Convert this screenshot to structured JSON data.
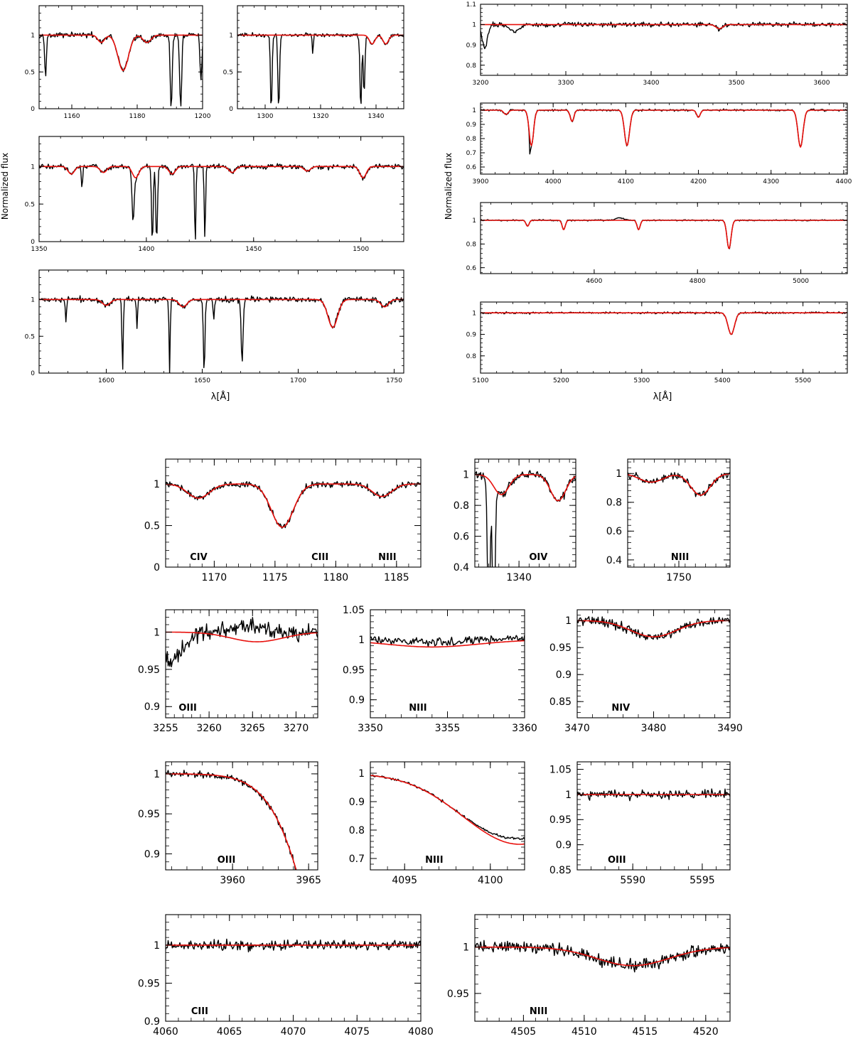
{
  "figure": {
    "ylabel_left": "Normalized flux",
    "ylabel_right": "Normalized flux",
    "xlabel_left": "λ[Å]",
    "xlabel_right": "λ[Å]"
  },
  "colors": {
    "observed": "#000000",
    "model": "#e8110d"
  },
  "chart_data": [
    {
      "id": "p1",
      "type": "line",
      "xlim": [
        1150,
        1200
      ],
      "ylim": [
        0,
        1.4
      ],
      "xticks": [
        1160,
        1180,
        1200
      ],
      "yticks": [
        0,
        0.5,
        1
      ],
      "ytick_labels": [
        "0",
        "0.5",
        "1"
      ],
      "noise": 0.035,
      "ions": [],
      "lines": [
        {
          "c": 1175.7,
          "d": 0.48,
          "w": 1.6,
          "m": true
        },
        {
          "c": 1169,
          "d": 0.1,
          "w": 1,
          "m": true
        },
        {
          "c": 1183,
          "d": 0.1,
          "w": 1.2,
          "m": true
        },
        {
          "c": 1152,
          "d": 0.55,
          "w": 0.25,
          "m": false
        },
        {
          "c": 1190.4,
          "d": 1.0,
          "w": 0.3,
          "m": false
        },
        {
          "c": 1193.3,
          "d": 1.0,
          "w": 0.3,
          "m": false
        },
        {
          "c": 1199.5,
          "d": 0.6,
          "w": 0.3,
          "m": false
        }
      ]
    },
    {
      "id": "p2",
      "type": "line",
      "xlim": [
        1290,
        1350
      ],
      "ylim": [
        0,
        1.4
      ],
      "xticks": [
        1300,
        1320,
        1340
      ],
      "yticks": [
        0,
        0.5,
        1
      ],
      "ytick_labels": [
        "0",
        "0.5",
        "1"
      ],
      "noise": 0.025,
      "ions": [],
      "lines": [
        {
          "c": 1302.2,
          "d": 1.0,
          "w": 0.3,
          "m": false
        },
        {
          "c": 1304.9,
          "d": 1.0,
          "w": 0.3,
          "m": false
        },
        {
          "c": 1317.2,
          "d": 0.25,
          "w": 0.2,
          "m": false
        },
        {
          "c": 1334.5,
          "d": 1.0,
          "w": 0.3,
          "m": false
        },
        {
          "c": 1335.7,
          "d": 0.8,
          "w": 0.3,
          "m": false
        },
        {
          "c": 1343.5,
          "d": 0.12,
          "w": 1,
          "m": true
        },
        {
          "c": 1338.6,
          "d": 0.12,
          "w": 1,
          "m": true
        }
      ]
    },
    {
      "id": "p3",
      "type": "line",
      "xlim": [
        1350,
        1520
      ],
      "ylim": [
        0,
        1.4
      ],
      "xticks": [
        1350,
        1400,
        1450,
        1500
      ],
      "yticks": [
        0,
        0.5,
        1
      ],
      "ytick_labels": [
        "0",
        "0.5",
        "1"
      ],
      "noise": 0.03,
      "ions": [],
      "lines": [
        {
          "c": 1370,
          "d": 0.3,
          "w": 0.3,
          "m": false
        },
        {
          "c": 1393.8,
          "d": 0.62,
          "w": 0.5,
          "m": false
        },
        {
          "c": 1402.8,
          "d": 1.0,
          "w": 0.4,
          "m": false
        },
        {
          "c": 1404.8,
          "d": 1.0,
          "w": 0.4,
          "m": false
        },
        {
          "c": 1422.8,
          "d": 1.0,
          "w": 0.3,
          "m": false
        },
        {
          "c": 1427.3,
          "d": 1.0,
          "w": 0.3,
          "m": false
        },
        {
          "c": 1365,
          "d": 0.1,
          "w": 1.5,
          "m": true
        },
        {
          "c": 1380,
          "d": 0.08,
          "w": 1.5,
          "m": true
        },
        {
          "c": 1395,
          "d": 0.15,
          "w": 1.5,
          "m": true
        },
        {
          "c": 1412,
          "d": 0.1,
          "w": 1.5,
          "m": true
        },
        {
          "c": 1440,
          "d": 0.08,
          "w": 1.5,
          "m": true
        },
        {
          "c": 1475,
          "d": 0.06,
          "w": 1.5,
          "m": true
        },
        {
          "c": 1501,
          "d": 0.15,
          "w": 1.5,
          "m": true
        }
      ]
    },
    {
      "id": "p4",
      "type": "line",
      "xlim": [
        1565,
        1755
      ],
      "ylim": [
        0,
        1.4
      ],
      "xticks": [
        1600,
        1650,
        1700,
        1750
      ],
      "yticks": [
        0,
        0.5,
        1
      ],
      "ytick_labels": [
        "0",
        "0.5",
        "1"
      ],
      "noise": 0.035,
      "ions": [],
      "lines": [
        {
          "c": 1579,
          "d": 0.3,
          "w": 0.3,
          "m": false
        },
        {
          "c": 1608.5,
          "d": 0.95,
          "w": 0.35,
          "m": false
        },
        {
          "c": 1616,
          "d": 0.4,
          "w": 0.3,
          "m": false
        },
        {
          "c": 1633,
          "d": 1.0,
          "w": 0.3,
          "m": false
        },
        {
          "c": 1651,
          "d": 1.0,
          "w": 0.4,
          "m": false
        },
        {
          "c": 1656,
          "d": 0.3,
          "w": 0.3,
          "m": false
        },
        {
          "c": 1670.8,
          "d": 0.85,
          "w": 0.5,
          "m": false
        },
        {
          "c": 1718,
          "d": 0.38,
          "w": 2.5,
          "m": true
        },
        {
          "c": 1600,
          "d": 0.08,
          "w": 2,
          "m": true
        },
        {
          "c": 1640,
          "d": 0.1,
          "w": 2,
          "m": true
        },
        {
          "c": 1745,
          "d": 0.1,
          "w": 2,
          "m": true
        }
      ]
    },
    {
      "id": "p5",
      "type": "line",
      "xlim": [
        3200,
        3630
      ],
      "ylim": [
        0.75,
        1.1
      ],
      "xticks": [
        3200,
        3300,
        3400,
        3500,
        3600
      ],
      "yticks": [
        0.8,
        0.9,
        1,
        1.1
      ],
      "ytick_labels": [
        "0.8",
        "0.9",
        "1",
        "1.1"
      ],
      "noise": 0.01,
      "ions": [],
      "lines": [
        {
          "c": 3205,
          "d": 0.12,
          "w": 3,
          "m": false
        },
        {
          "c": 3240,
          "d": 0.03,
          "w": 6,
          "m": false
        },
        {
          "c": 3480,
          "d": 0.02,
          "w": 4,
          "m": true
        }
      ]
    },
    {
      "id": "p6",
      "type": "line",
      "xlim": [
        3900,
        4405
      ],
      "ylim": [
        0.55,
        1.05
      ],
      "xticks": [
        3900,
        4000,
        4100,
        4200,
        4300,
        4400
      ],
      "yticks": [
        0.6,
        0.7,
        0.8,
        0.9,
        1
      ],
      "ytick_labels": [
        "0.6",
        "0.7",
        "0.8",
        "0.9",
        "1"
      ],
      "noise": 0.006,
      "ions": [],
      "lines": [
        {
          "c": 3970,
          "d": 0.25,
          "w": 3,
          "m": true
        },
        {
          "c": 3968,
          "d": 0.12,
          "w": 0.7,
          "m": false
        },
        {
          "c": 4026,
          "d": 0.08,
          "w": 2.5,
          "m": true
        },
        {
          "c": 4101.7,
          "d": 0.25,
          "w": 3.5,
          "m": true
        },
        {
          "c": 4200,
          "d": 0.05,
          "w": 2.5,
          "m": true
        },
        {
          "c": 4340.5,
          "d": 0.26,
          "w": 3.5,
          "m": true
        },
        {
          "c": 3935,
          "d": 0.03,
          "w": 3,
          "m": true
        }
      ]
    },
    {
      "id": "p7",
      "type": "line",
      "xlim": [
        4380,
        5090
      ],
      "ylim": [
        0.55,
        1.15
      ],
      "xticks": [
        4600,
        4800,
        5000
      ],
      "yticks": [
        0.6,
        0.8,
        1
      ],
      "ytick_labels": [
        "0.6",
        "0.8",
        "1"
      ],
      "noise": 0.005,
      "ions": [],
      "lines": [
        {
          "c": 4471,
          "d": 0.05,
          "w": 3,
          "m": true
        },
        {
          "c": 4541,
          "d": 0.08,
          "w": 3,
          "m": true
        },
        {
          "c": 4686,
          "d": 0.08,
          "w": 3,
          "m": true
        },
        {
          "c": 4861,
          "d": 0.24,
          "w": 4,
          "m": true
        },
        {
          "c": 4650,
          "d": -0.02,
          "w": 8,
          "m": false
        }
      ]
    },
    {
      "id": "p8",
      "type": "line",
      "xlim": [
        5100,
        5555
      ],
      "ylim": [
        0.72,
        1.05
      ],
      "xticks": [
        5100,
        5200,
        5300,
        5400,
        5500
      ],
      "yticks": [
        0.8,
        0.9,
        1
      ],
      "ytick_labels": [
        "0.8",
        "0.9",
        "1"
      ],
      "noise": 0.004,
      "ions": [],
      "lines": [
        {
          "c": 5411,
          "d": 0.1,
          "w": 4,
          "m": true
        }
      ]
    },
    {
      "id": "z1",
      "type": "line",
      "xlim": [
        1166,
        1187
      ],
      "ylim": [
        0,
        1.3
      ],
      "xticks": [
        1170,
        1175,
        1180,
        1185
      ],
      "yticks": [
        0,
        0.5,
        1
      ],
      "ytick_labels": [
        "0",
        "0.5",
        "1"
      ],
      "noise": 0.035,
      "ions": [
        {
          "t": "CIV",
          "x": 1168
        },
        {
          "t": "CIII",
          "x": 1178
        },
        {
          "t": "NIII",
          "x": 1183.5
        }
      ],
      "lines": [
        {
          "c": 1175.6,
          "d": 0.52,
          "w": 0.9,
          "m": true
        },
        {
          "c": 1168.7,
          "d": 0.17,
          "w": 0.9,
          "m": true
        },
        {
          "c": 1183.8,
          "d": 0.15,
          "w": 0.8,
          "m": true
        }
      ]
    },
    {
      "id": "z2",
      "type": "line",
      "xlim": [
        1336.5,
        1344.5
      ],
      "ylim": [
        0.4,
        1.1
      ],
      "xticks": [
        1340
      ],
      "yticks": [
        0.4,
        0.6,
        0.8,
        1
      ],
      "ytick_labels": [
        "0.4",
        "0.6",
        "0.8",
        "1"
      ],
      "noise": 0.025,
      "ions": [
        {
          "t": "OIV",
          "x": 1340.8
        }
      ],
      "lines": [
        {
          "c": 1338.6,
          "d": 0.13,
          "w": 0.6,
          "m": true
        },
        {
          "c": 1343.1,
          "d": 0.17,
          "w": 0.6,
          "m": true
        },
        {
          "c": 1337.6,
          "d": 1.0,
          "w": 0.1,
          "m": false
        },
        {
          "c": 1338.0,
          "d": 1.0,
          "w": 0.1,
          "m": false
        }
      ]
    },
    {
      "id": "z3",
      "type": "line",
      "xlim": [
        1747.4,
        1752.6
      ],
      "ylim": [
        0.35,
        1.1
      ],
      "xticks": [
        1750
      ],
      "yticks": [
        0.4,
        0.6,
        0.8,
        1
      ],
      "ytick_labels": [
        "0.4",
        "0.6",
        "0.8",
        "1"
      ],
      "noise": 0.025,
      "ions": [
        {
          "t": "NIII",
          "x": 1749.6
        }
      ],
      "lines": [
        {
          "c": 1751.1,
          "d": 0.15,
          "w": 0.5,
          "m": true
        },
        {
          "c": 1748.6,
          "d": 0.06,
          "w": 0.6,
          "m": true
        }
      ]
    },
    {
      "id": "z4",
      "type": "line",
      "xlim": [
        3255,
        3272.5
      ],
      "ylim": [
        0.885,
        1.03
      ],
      "xticks": [
        3255,
        3260,
        3265,
        3270
      ],
      "yticks": [
        0.9,
        0.95,
        1
      ],
      "ytick_labels": [
        "0.9",
        "0.95",
        "1"
      ],
      "noise": 0.01,
      "ions": [
        {
          "t": "OIII",
          "x": 3256.5
        }
      ],
      "lines": [
        {
          "c": 3265.5,
          "d": 0.013,
          "w": 3,
          "m": true
        },
        {
          "c": 3255.5,
          "d": 0.04,
          "w": 1.5,
          "m": false
        },
        {
          "c": 3265,
          "d": -0.02,
          "w": 2.5,
          "m": false
        }
      ]
    },
    {
      "id": "z5",
      "type": "line",
      "xlim": [
        3350,
        3360
      ],
      "ylim": [
        0.87,
        1.05
      ],
      "xticks": [
        3350,
        3355,
        3360
      ],
      "yticks": [
        0.9,
        0.95,
        1,
        1.05
      ],
      "ytick_labels": [
        "0.9",
        "0.95",
        "1",
        "1.05"
      ],
      "noise": 0.006,
      "ions": [
        {
          "t": "NIII",
          "x": 3352.5
        }
      ],
      "lines": [
        {
          "c": 3354,
          "d": 0.012,
          "w": 3,
          "m": true
        },
        {
          "c": 3354,
          "d": -0.008,
          "w": 5,
          "m": false
        }
      ]
    },
    {
      "id": "z6",
      "type": "line",
      "xlim": [
        3470,
        3490
      ],
      "ylim": [
        0.82,
        1.02
      ],
      "xticks": [
        3470,
        3480,
        3490
      ],
      "yticks": [
        0.85,
        0.9,
        0.95,
        1
      ],
      "ytick_labels": [
        "0.85",
        "0.9",
        "0.95",
        "1"
      ],
      "noise": 0.008,
      "ions": [
        {
          "t": "NIV",
          "x": 3474.5
        }
      ],
      "lines": [
        {
          "c": 3480,
          "d": 0.03,
          "w": 3,
          "m": true
        }
      ]
    },
    {
      "id": "z7",
      "type": "line",
      "xlim": [
        3955.6,
        3965.6
      ],
      "ylim": [
        0.88,
        1.015
      ],
      "xticks": [
        3960,
        3965
      ],
      "yticks": [
        0.9,
        0.95,
        1
      ],
      "ytick_labels": [
        "0.9",
        "0.95",
        "1"
      ],
      "noise": 0.004,
      "ions": [
        {
          "t": "OIII",
          "x": 3959
        }
      ],
      "lines": [
        {
          "c": 3970.1,
          "d": 0.6,
          "w": 3.3,
          "m": true
        }
      ]
    },
    {
      "id": "z8",
      "type": "line",
      "xlim": [
        4093,
        4102
      ],
      "ylim": [
        0.66,
        1.04
      ],
      "xticks": [
        4095,
        4100
      ],
      "yticks": [
        0.7,
        0.8,
        0.9,
        1
      ],
      "ytick_labels": [
        "0.7",
        "0.8",
        "0.9",
        "1"
      ],
      "noise": 0.004,
      "ions": [
        {
          "t": "NIII",
          "x": 4096.2
        }
      ],
      "lines": [
        {
          "c": 4101.7,
          "d": 0.25,
          "w": 3.3,
          "m": true
        },
        {
          "c": 4101.7,
          "d": -0.02,
          "w": 1.5,
          "m": false
        }
      ]
    },
    {
      "id": "z9",
      "type": "line",
      "xlim": [
        5586,
        5597
      ],
      "ylim": [
        0.85,
        1.065
      ],
      "xticks": [
        5590,
        5595
      ],
      "yticks": [
        0.85,
        0.9,
        0.95,
        1,
        1.05
      ],
      "ytick_labels": [
        "0.85",
        "0.9",
        "0.95",
        "1",
        "1.05"
      ],
      "noise": 0.008,
      "ions": [
        {
          "t": "OIII",
          "x": 5588.2
        }
      ],
      "lines": []
    },
    {
      "id": "z10",
      "type": "line",
      "xlim": [
        4060,
        4080
      ],
      "ylim": [
        0.9,
        1.04
      ],
      "xticks": [
        4060,
        4065,
        4070,
        4075,
        4080
      ],
      "yticks": [
        0.9,
        0.95,
        1
      ],
      "ytick_labels": [
        "0.9",
        "0.95",
        "1"
      ],
      "noise": 0.006,
      "ions": [
        {
          "t": "CIII",
          "x": 4062
        }
      ],
      "lines": []
    },
    {
      "id": "z11",
      "type": "line",
      "xlim": [
        4501,
        4522
      ],
      "ylim": [
        0.92,
        1.035
      ],
      "xticks": [
        4505,
        4510,
        4515,
        4520
      ],
      "yticks": [
        0.95,
        1
      ],
      "ytick_labels": [
        "0.95",
        "1"
      ],
      "noise": 0.006,
      "ions": [
        {
          "t": "NIII",
          "x": 4505.5
        }
      ],
      "lines": [
        {
          "c": 4514,
          "d": 0.02,
          "w": 3,
          "m": true
        }
      ]
    }
  ]
}
